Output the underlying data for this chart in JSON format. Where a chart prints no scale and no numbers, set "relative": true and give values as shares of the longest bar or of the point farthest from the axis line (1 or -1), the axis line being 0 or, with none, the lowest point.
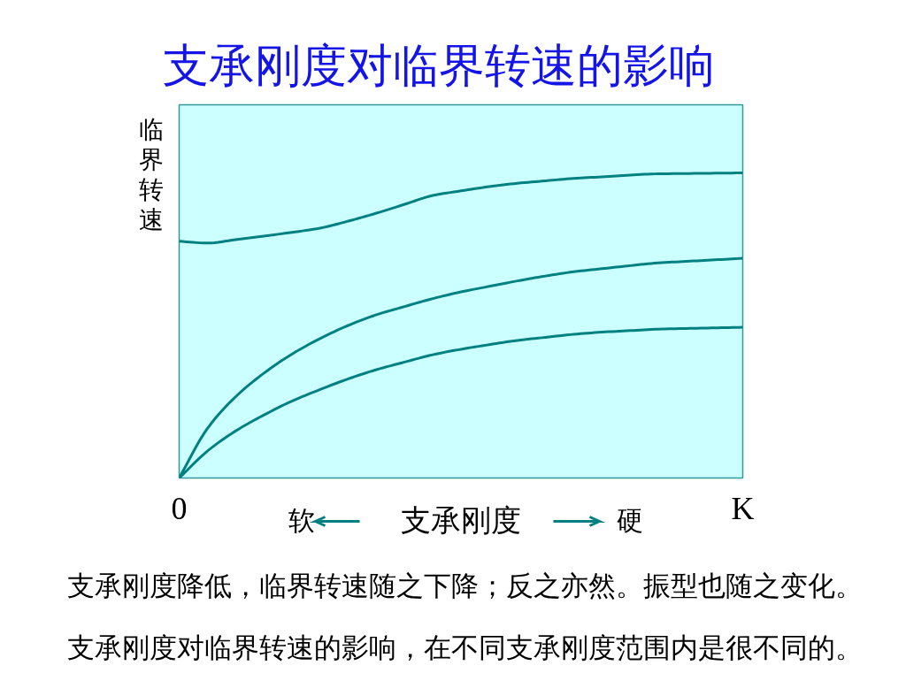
{
  "chart_data": {
    "type": "line",
    "title": "支承刚度对临界转速的影响",
    "xlabel": "支承刚度",
    "ylabel": "临界转速",
    "annotations": [
      "软",
      "硬",
      "支承刚度降低，临界转速随之下降；反之亦然。振型也随之变化。",
      "支承刚度对临界转速的影响，在不同支承刚度范围内是很不同的。"
    ],
    "relative": true,
    "grid": false,
    "line_style": "solid",
    "categories": [
      "0",
      null,
      null,
      null,
      null,
      null,
      null,
      null,
      null,
      null,
      null,
      null,
      null,
      null,
      null,
      null,
      null,
      null,
      null,
      null,
      "K"
    ],
    "series": [
      {
        "color": "#008080",
        "values": [
          0.776,
          0.77,
          0.781,
          0.793,
          0.805,
          0.819,
          0.842,
          0.868,
          0.897,
          0.926,
          0.941,
          0.955,
          0.966,
          0.974,
          0.982,
          0.987,
          0.993,
          0.997,
          0.998,
          0.999,
          1.0
        ]
      },
      {
        "color": "#008080",
        "values": [
          0,
          0.162,
          0.266,
          0.343,
          0.406,
          0.457,
          0.5,
          0.535,
          0.562,
          0.588,
          0.61,
          0.628,
          0.646,
          0.662,
          0.676,
          0.686,
          0.696,
          0.705,
          0.71,
          0.715,
          0.72
        ]
      },
      {
        "color": "#008080",
        "values": [
          0,
          0.088,
          0.154,
          0.206,
          0.252,
          0.29,
          0.325,
          0.355,
          0.38,
          0.404,
          0.422,
          0.437,
          0.451,
          0.461,
          0.471,
          0.478,
          0.483,
          0.488,
          0.49,
          0.492,
          0.494
        ]
      }
    ]
  }
}
